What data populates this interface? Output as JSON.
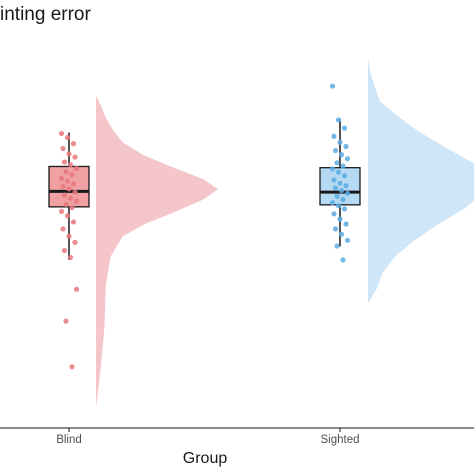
{
  "chart_data": {
    "type": "raincloud",
    "title": "inting error",
    "xlabel": "Group",
    "categories": [
      "Blind",
      "Sighted"
    ],
    "colors": {
      "Blind": "#e8787c",
      "Sighted": "#5aabe3"
    },
    "ylim": [
      0,
      1
    ],
    "groups": [
      {
        "name": "Blind",
        "box": {
          "min": 0.412,
          "q1": 0.542,
          "median": 0.58,
          "q3": 0.641,
          "max": 0.724
        },
        "outliers": [
          0.34,
          0.262,
          0.15
        ],
        "points": [
          0.722,
          0.712,
          0.697,
          0.685,
          0.672,
          0.664,
          0.652,
          0.645,
          0.636,
          0.628,
          0.621,
          0.612,
          0.605,
          0.598,
          0.592,
          0.586,
          0.578,
          0.571,
          0.563,
          0.556,
          0.548,
          0.54,
          0.531,
          0.52,
          0.505,
          0.488,
          0.47,
          0.455,
          0.435,
          0.418,
          0.34,
          0.262,
          0.15
        ],
        "density": [
          [
            0.05,
            0.0
          ],
          [
            0.15,
            0.04
          ],
          [
            0.25,
            0.07
          ],
          [
            0.35,
            0.08
          ],
          [
            0.42,
            0.12
          ],
          [
            0.47,
            0.22
          ],
          [
            0.5,
            0.4
          ],
          [
            0.53,
            0.65
          ],
          [
            0.56,
            0.88
          ],
          [
            0.585,
            1.0
          ],
          [
            0.61,
            0.88
          ],
          [
            0.64,
            0.62
          ],
          [
            0.67,
            0.38
          ],
          [
            0.7,
            0.22
          ],
          [
            0.73,
            0.14
          ],
          [
            0.76,
            0.08
          ],
          [
            0.79,
            0.04
          ],
          [
            0.815,
            0.0
          ]
        ]
      },
      {
        "name": "Sighted",
        "box": {
          "min": 0.445,
          "q1": 0.547,
          "median": 0.578,
          "q3": 0.638,
          "max": 0.757
        },
        "outliers": [
          0.838
        ],
        "points": [
          0.838,
          0.755,
          0.735,
          0.715,
          0.7,
          0.69,
          0.68,
          0.67,
          0.66,
          0.65,
          0.642,
          0.635,
          0.627,
          0.618,
          0.608,
          0.6,
          0.594,
          0.588,
          0.582,
          0.575,
          0.568,
          0.56,
          0.552,
          0.545,
          0.537,
          0.525,
          0.512,
          0.5,
          0.488,
          0.475,
          0.46,
          0.446,
          0.412
        ],
        "density": [
          [
            0.306,
            0.0
          ],
          [
            0.34,
            0.07
          ],
          [
            0.38,
            0.12
          ],
          [
            0.42,
            0.22
          ],
          [
            0.46,
            0.38
          ],
          [
            0.5,
            0.58
          ],
          [
            0.54,
            0.8
          ],
          [
            0.58,
            0.96
          ],
          [
            0.615,
            1.0
          ],
          [
            0.65,
            0.86
          ],
          [
            0.69,
            0.62
          ],
          [
            0.73,
            0.4
          ],
          [
            0.77,
            0.22
          ],
          [
            0.8,
            0.1
          ],
          [
            0.84,
            0.05
          ],
          [
            0.87,
            0.02
          ],
          [
            0.905,
            0.0
          ]
        ]
      }
    ]
  }
}
